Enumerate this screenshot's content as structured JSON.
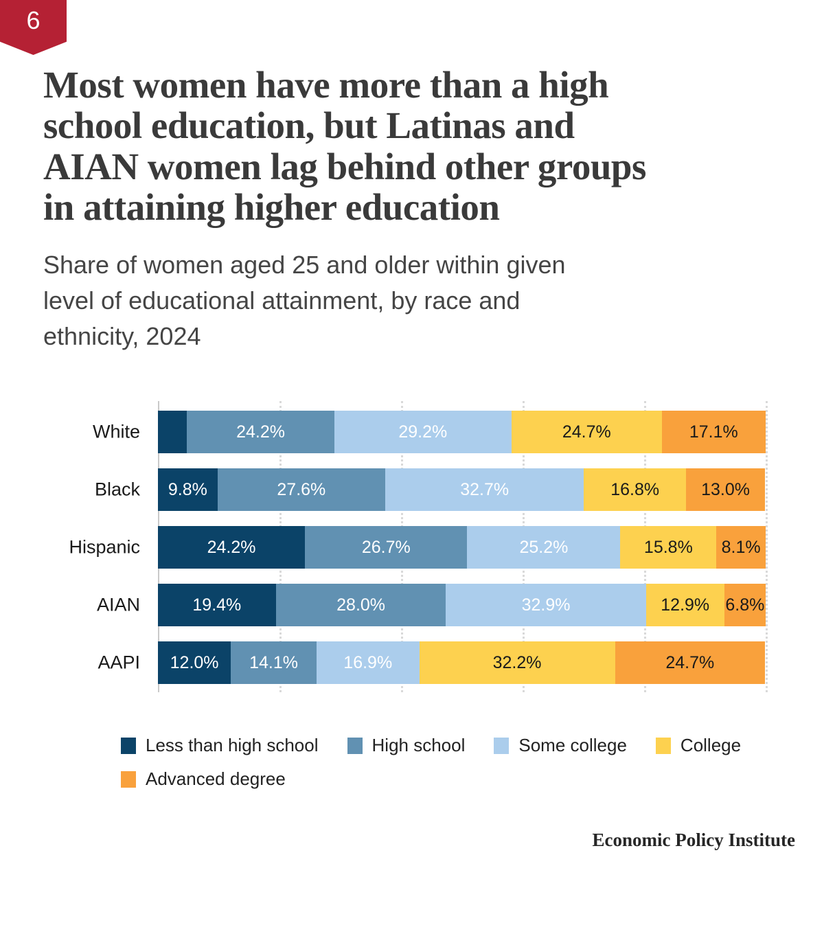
{
  "badge": {
    "number": "6"
  },
  "header": {
    "title": "Most women have more than a high school education, but Latinas and AIAN women lag behind other groups in attaining higher education",
    "title_lines": [
      "Most women have more than a high",
      "school education, but Latinas and",
      "AIAN women lag behind other groups",
      "in attaining higher education"
    ],
    "subtitle_lines": [
      "Share of women aged 25 and older within given",
      "level of educational attainment, by race and",
      "ethnicity, 2024"
    ]
  },
  "footer": {
    "source": "Economic Policy Institute"
  },
  "colors": {
    "badge_red": "#b52134",
    "less_than_high_school": "#0b4368",
    "high_school": "#6191b2",
    "some_college": "#abcdec",
    "college": "#fdd14f",
    "advanced_degree": "#f9a13c",
    "gridline": "#d9d9d9"
  },
  "chart_data": {
    "type": "bar",
    "orientation": "horizontal-stacked",
    "unit": "percent",
    "xlim": [
      0,
      100
    ],
    "gridlines_percent": [
      0,
      20,
      40,
      60,
      80,
      100
    ],
    "legend_position": "bottom-left",
    "categories": [
      "White",
      "Black",
      "Hispanic",
      "AIAN",
      "AAPI"
    ],
    "series": [
      {
        "name": "Less than high school",
        "color": "#0b4368",
        "text_color": "#ffffff",
        "values": [
          4.8,
          9.8,
          24.2,
          19.4,
          12.0
        ],
        "labels": [
          "",
          "9.8%",
          "24.2%",
          "19.4%",
          "12.0%"
        ]
      },
      {
        "name": "High school",
        "color": "#6191b2",
        "text_color": "#ffffff",
        "values": [
          24.2,
          27.6,
          26.7,
          28.0,
          14.1
        ],
        "labels": [
          "24.2%",
          "27.6%",
          "26.7%",
          "28.0%",
          "14.1%"
        ]
      },
      {
        "name": "Some college",
        "color": "#abcdec",
        "text_color": "#ffffff",
        "values": [
          29.2,
          32.7,
          25.2,
          32.9,
          16.9
        ],
        "labels": [
          "29.2%",
          "32.7%",
          "25.2%",
          "32.9%",
          "16.9%"
        ]
      },
      {
        "name": "College",
        "color": "#fdd14f",
        "text_color": "#1a1a1a",
        "values": [
          24.7,
          16.8,
          15.8,
          12.9,
          32.2
        ],
        "labels": [
          "24.7%",
          "16.8%",
          "15.8%",
          "12.9%",
          "32.2%"
        ]
      },
      {
        "name": "Advanced degree",
        "color": "#f9a13c",
        "text_color": "#1a1a1a",
        "values": [
          17.1,
          13.0,
          8.1,
          6.8,
          24.7
        ],
        "labels": [
          "17.1%",
          "13.0%",
          "8.1%",
          "6.8%",
          "24.7%"
        ]
      }
    ]
  }
}
